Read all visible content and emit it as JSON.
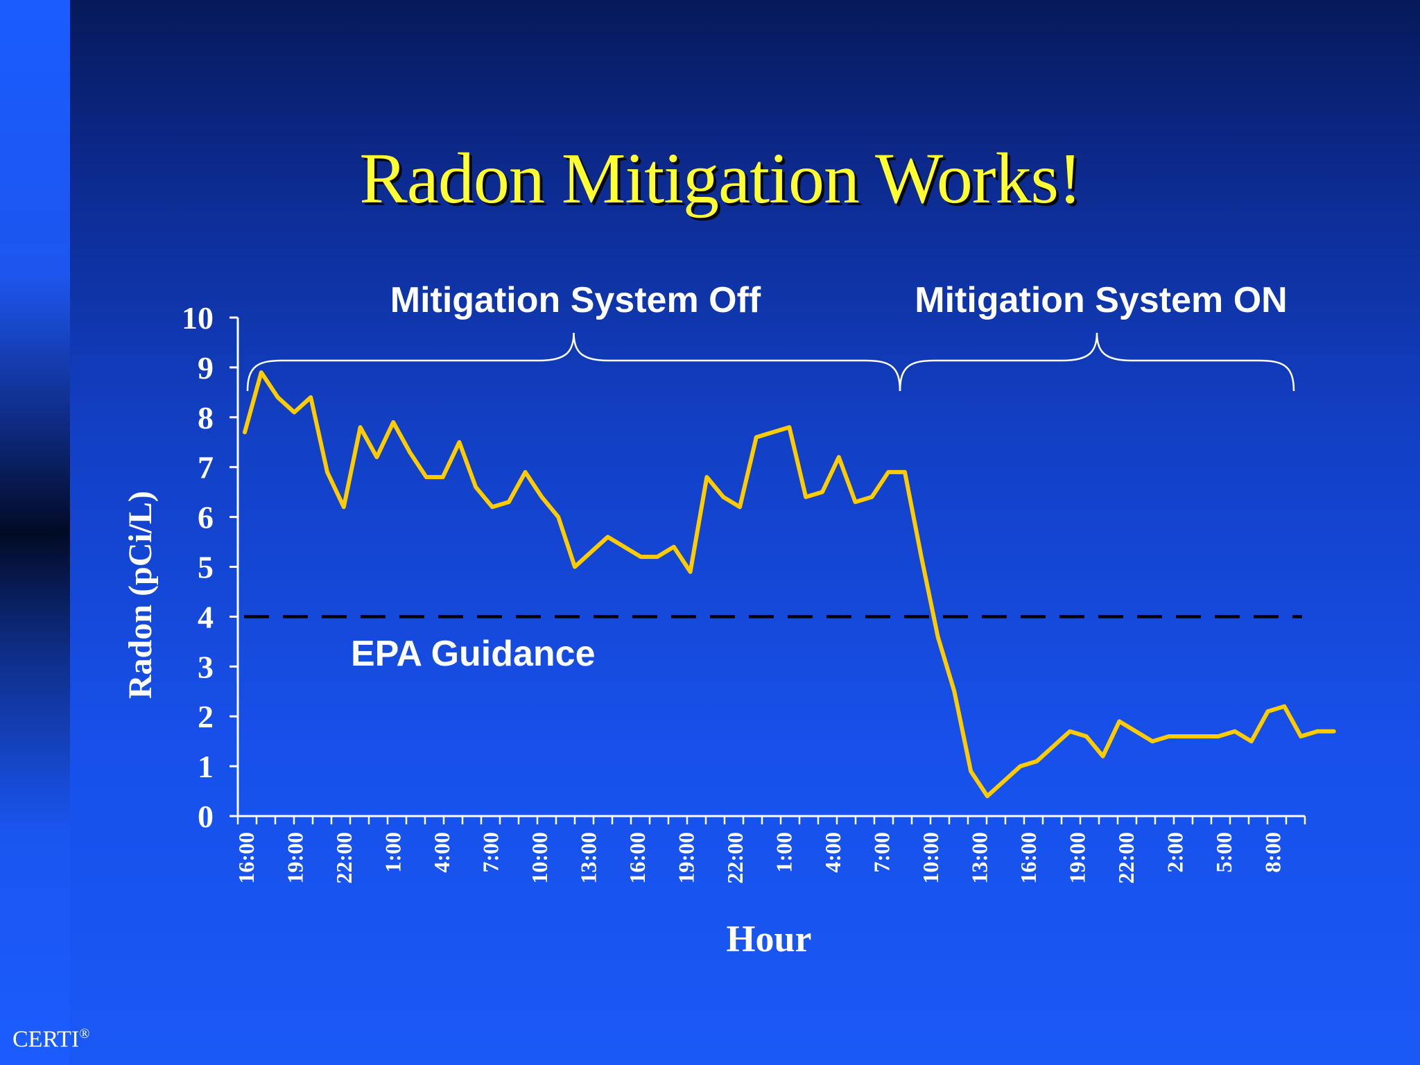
{
  "slide": {
    "title": "Radon Mitigation Works!",
    "footer_mark": "CERTI",
    "footer_symbol": "®"
  },
  "chart_data": {
    "type": "line",
    "ylabel": "Radon (pCi/L)",
    "xlabel": "Hour",
    "ylim": [
      0,
      10
    ],
    "yticks": [
      "0",
      "1",
      "2",
      "3",
      "4",
      "5",
      "6",
      "7",
      "8",
      "9",
      "10"
    ],
    "xtick_labels": [
      "16:00",
      "19:00",
      "22:00",
      "1:00",
      "4:00",
      "7:00",
      "10:00",
      "13:00",
      "16:00",
      "19:00",
      "22:00",
      "1:00",
      "4:00",
      "7:00",
      "10:00",
      "13:00",
      "16:00",
      "19:00",
      "22:00",
      "2:00",
      "5:00",
      "8:00"
    ],
    "series": [
      {
        "color": "#ffcc00",
        "values": [
          7.7,
          8.9,
          8.4,
          8.1,
          8.4,
          6.9,
          6.2,
          7.8,
          7.2,
          7.9,
          7.3,
          6.8,
          6.8,
          7.5,
          6.6,
          6.2,
          6.3,
          6.9,
          6.4,
          6.0,
          5.0,
          5.3,
          5.6,
          5.4,
          5.2,
          5.2,
          5.4,
          4.9,
          6.8,
          6.4,
          6.2,
          7.6,
          7.7,
          7.8,
          6.4,
          6.5,
          7.2,
          6.3,
          6.4,
          6.9,
          6.9,
          5.2,
          3.6,
          2.5,
          0.9,
          0.4,
          0.7,
          1.0,
          1.1,
          1.4,
          1.7,
          1.6,
          1.2,
          1.9,
          1.7,
          1.5,
          1.6,
          1.6,
          1.6,
          1.6,
          1.7,
          1.5,
          2.1,
          2.2,
          1.6,
          1.7,
          1.7
        ]
      }
    ],
    "reference_line": {
      "value": 4,
      "label": "EPA Guidance",
      "style": "dashed",
      "color": "#000000"
    },
    "annotations": [
      {
        "label": "Mitigation System Off",
        "from_point": 0,
        "to_point": 40
      },
      {
        "label": "Mitigation System ON",
        "from_point": 40,
        "to_point": 66
      }
    ],
    "grid": false
  }
}
